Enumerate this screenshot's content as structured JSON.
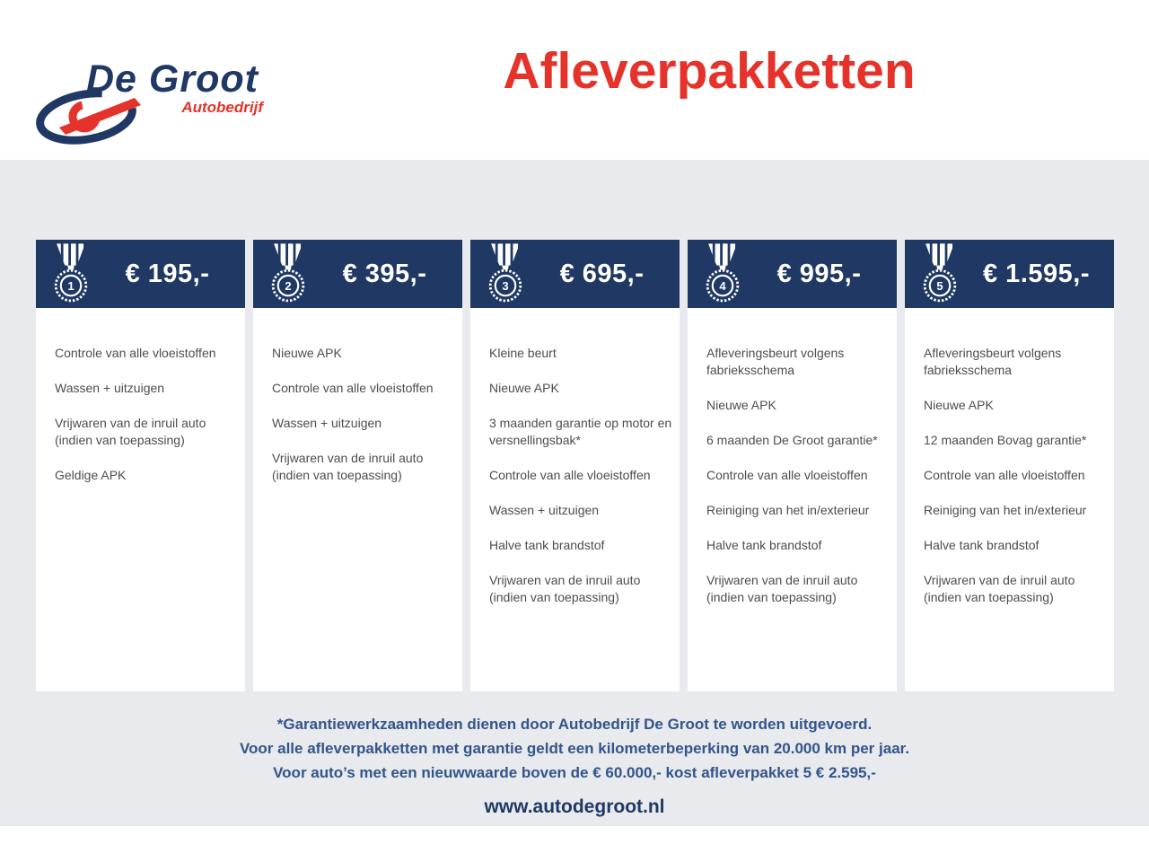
{
  "header": {
    "title": "Afleverpakketten",
    "logo": {
      "name": "De Groot",
      "subtitle": "Autobedrijf"
    }
  },
  "packages": [
    {
      "number": "1",
      "price": "€ 195,-",
      "medal_icon": "medal-ribbon-number-1",
      "features": [
        "Controle van alle vloeistoffen",
        "Wassen + uitzuigen",
        "Vrijwaren van de inruil auto (indien van toepassing)",
        "Geldige APK"
      ]
    },
    {
      "number": "2",
      "price": "€ 395,-",
      "medal_icon": "medal-ribbon-number-2",
      "features": [
        "Nieuwe APK",
        "Controle van alle vloeistoffen",
        "Wassen + uitzuigen",
        "Vrijwaren van de inruil auto (indien van toepassing)"
      ]
    },
    {
      "number": "3",
      "price": "€ 695,-",
      "medal_icon": "medal-ribbon-number-3",
      "features": [
        "Kleine beurt",
        "Nieuwe APK",
        "3 maanden garantie op motor en versnellingsbak*",
        "Controle van alle vloeistoffen",
        "Wassen + uitzuigen",
        "Halve tank brandstof",
        "Vrijwaren van de inruil auto (indien van toepassing)"
      ]
    },
    {
      "number": "4",
      "price": "€ 995,-",
      "medal_icon": "medal-ribbon-number-4",
      "features": [
        "Afleveringsbeurt volgens fabrieksschema",
        "Nieuwe APK",
        "6 maanden De Groot garantie*",
        "Controle van alle vloeistoffen",
        "Reiniging van het in/exterieur",
        "Halve tank brandstof",
        "Vrijwaren van de inruil auto (indien van toepassing)"
      ]
    },
    {
      "number": "5",
      "price": "€ 1.595,-",
      "medal_icon": "medal-ribbon-number-5",
      "features": [
        "Afleveringsbeurt volgens fabrieksschema",
        "Nieuwe APK",
        "12 maanden Bovag garantie*",
        "Controle van alle vloeistoffen",
        "Reiniging van het in/exterieur",
        "Halve tank brandstof",
        "Vrijwaren van de inruil auto (indien van toepassing)"
      ]
    }
  ],
  "footnotes": [
    "*Garantiewerkzaamheden dienen door Autobedrijf De Groot te worden uitgevoerd.",
    "Voor alle afleverpakketten met garantie geldt een kilometerbeperking van 20.000 km per jaar.",
    "Voor auto’s met een nieuwwaarde boven de € 60.000,- kost afleverpakket 5 € 2.595,-"
  ],
  "footer": {
    "website": "www.autodegroot.nl"
  },
  "colors": {
    "navy": "#1f3864",
    "red": "#e5332b",
    "band_gray": "#e8eaed",
    "feature_text": "#4d4d4d",
    "footnote_text": "#33548c"
  }
}
